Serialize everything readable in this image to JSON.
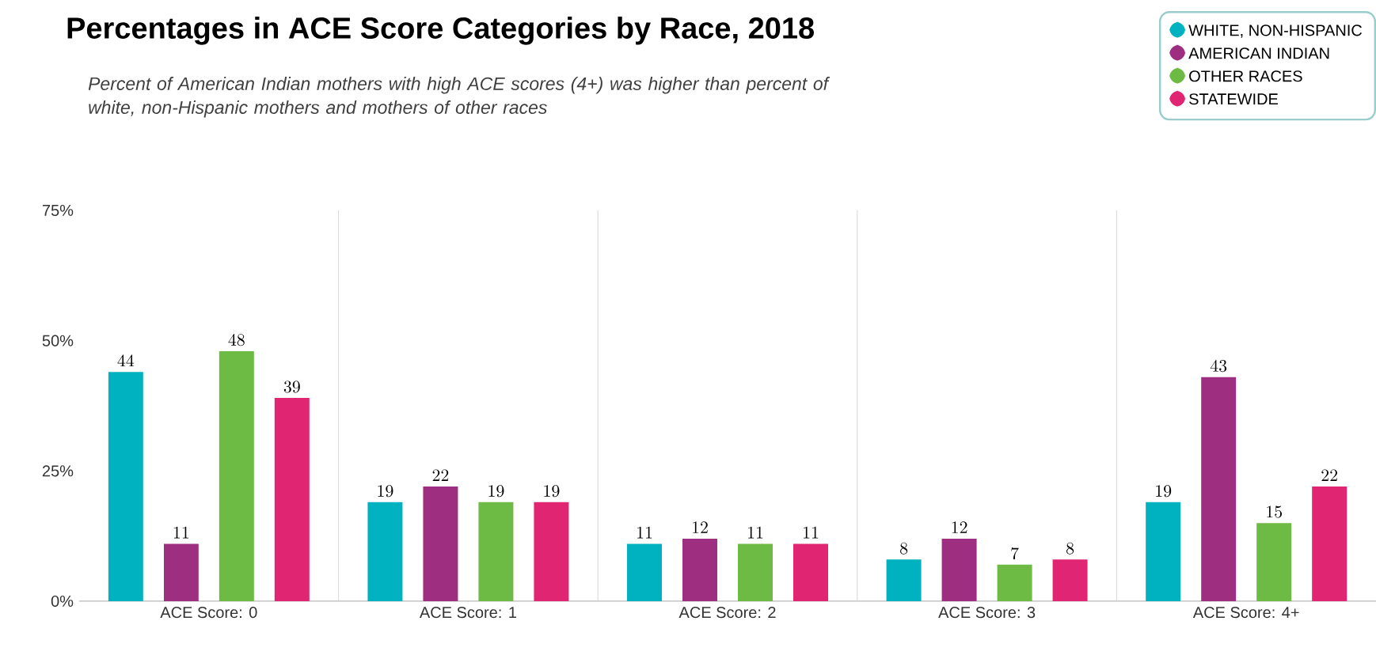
{
  "chart_data": {
    "type": "bar",
    "title": "Percentages in ACE Score Categories by Race, 2018",
    "subtitle": "Percent of American Indian mothers with high ACE scores (4+) was higher than percent of white, non-Hispanic mothers and mothers of other races",
    "categories": [
      "ACE Score: 0",
      "ACE Score: 1",
      "ACE Score: 2",
      "ACE Score: 3",
      "ACE Score: 4+"
    ],
    "series": [
      {
        "name": "WHITE, NON-HISPANIC",
        "color": "#00b2bf",
        "values": [
          44,
          19,
          11,
          8,
          19
        ]
      },
      {
        "name": "AMERICAN INDIAN",
        "color": "#9e2f80",
        "values": [
          11,
          22,
          12,
          12,
          43
        ]
      },
      {
        "name": "OTHER RACES",
        "color": "#6dbb45",
        "values": [
          48,
          19,
          11,
          7,
          15
        ]
      },
      {
        "name": "STATEWIDE",
        "color": "#e02672",
        "values": [
          39,
          19,
          11,
          8,
          22
        ]
      }
    ],
    "ylim": [
      0,
      75
    ],
    "yticks": [
      {
        "value": 0,
        "label": "0%"
      },
      {
        "value": 25,
        "label": "25%"
      },
      {
        "value": 50,
        "label": "50%"
      },
      {
        "value": 75,
        "label": "75%"
      }
    ],
    "grid": "x",
    "legend": "top right",
    "data_labels": true
  }
}
